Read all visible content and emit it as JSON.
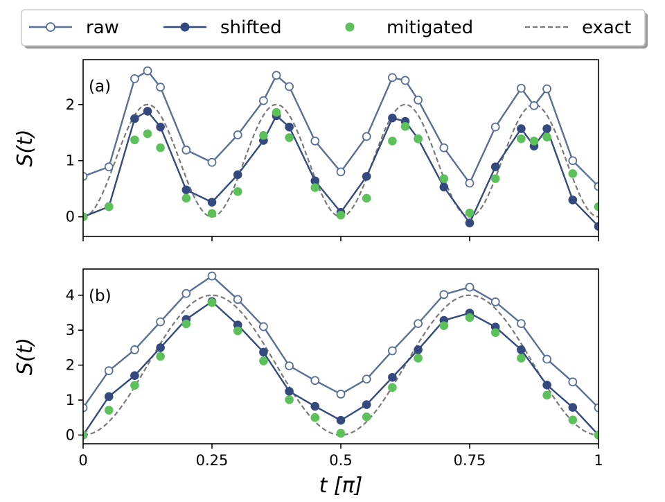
{
  "chart_data": {
    "type": "line",
    "legend": {
      "placement": "top",
      "entries": [
        {
          "name": "raw",
          "style": "open-circle-line",
          "color": "#5a6e96"
        },
        {
          "name": "shifted",
          "style": "filled-circle-line",
          "color": "#34497e"
        },
        {
          "name": "mitigated",
          "style": "dots",
          "color": "#5cc15a"
        },
        {
          "name": "exact",
          "style": "dashed",
          "color": "#7a7a7a"
        }
      ]
    },
    "xlabel": "t [π]",
    "ylabel": "S(t)",
    "xlim": [
      0,
      1
    ],
    "xticks": [
      0,
      0.25,
      0.5,
      0.75,
      1
    ],
    "xtick_labels": [
      "0",
      "0.25",
      "0.5",
      "0.75",
      "1"
    ],
    "panels": [
      {
        "label": "(a)",
        "ylim": [
          -0.35,
          2.8
        ],
        "yticks": [
          0,
          1,
          2
        ],
        "ytick_labels": [
          "0",
          "1",
          "2"
        ],
        "exact": {
          "formula": "1 - cos(8*pi*t)"
        },
        "series": [
          {
            "name": "raw",
            "x": [
              0,
              0.05,
              0.1,
              0.125,
              0.15,
              0.2,
              0.25,
              0.3,
              0.35,
              0.375,
              0.4,
              0.45,
              0.5,
              0.55,
              0.6,
              0.625,
              0.65,
              0.7,
              0.75,
              0.8,
              0.85,
              0.875,
              0.9,
              0.95,
              1.0
            ],
            "y": [
              0.72,
              0.89,
              2.46,
              2.6,
              2.31,
              1.19,
              0.97,
              1.46,
              2.07,
              2.52,
              2.32,
              1.35,
              0.8,
              1.43,
              2.48,
              2.43,
              2.08,
              1.23,
              0.6,
              1.6,
              2.29,
              1.98,
              2.28,
              1.0,
              0.54
            ]
          },
          {
            "name": "shifted",
            "x": [
              0,
              0.05,
              0.1,
              0.125,
              0.15,
              0.2,
              0.25,
              0.3,
              0.35,
              0.375,
              0.4,
              0.45,
              0.5,
              0.55,
              0.6,
              0.625,
              0.65,
              0.7,
              0.75,
              0.8,
              0.85,
              0.875,
              0.9,
              0.95,
              1.0
            ],
            "y": [
              0.0,
              0.18,
              1.75,
              1.88,
              1.6,
              0.48,
              0.26,
              0.75,
              1.36,
              1.8,
              1.6,
              0.64,
              0.08,
              0.72,
              1.76,
              1.7,
              1.39,
              0.53,
              -0.11,
              0.89,
              1.57,
              1.26,
              1.57,
              0.3,
              -0.17
            ]
          },
          {
            "name": "mitigated",
            "x": [
              0,
              0.05,
              0.1,
              0.125,
              0.15,
              0.2,
              0.25,
              0.3,
              0.35,
              0.375,
              0.4,
              0.45,
              0.5,
              0.55,
              0.6,
              0.625,
              0.65,
              0.7,
              0.75,
              0.8,
              0.85,
              0.875,
              0.9,
              0.95,
              1.0
            ],
            "y": [
              0.0,
              0.18,
              1.37,
              1.48,
              1.23,
              0.33,
              0.06,
              0.45,
              1.45,
              1.86,
              1.41,
              0.52,
              0.03,
              0.33,
              1.35,
              1.61,
              1.39,
              0.68,
              0.07,
              0.68,
              1.39,
              1.35,
              1.42,
              0.77,
              0.18
            ]
          }
        ]
      },
      {
        "label": "(b)",
        "ylim": [
          -0.25,
          4.75
        ],
        "yticks": [
          0,
          1,
          2,
          3,
          4
        ],
        "ytick_labels": [
          "0",
          "1",
          "2",
          "3",
          "4"
        ],
        "exact": {
          "formula": "2 - 2*cos(4*pi*t)"
        },
        "series": [
          {
            "name": "raw",
            "x": [
              0,
              0.05,
              0.1,
              0.15,
              0.2,
              0.25,
              0.3,
              0.35,
              0.4,
              0.45,
              0.5,
              0.55,
              0.6,
              0.65,
              0.7,
              0.75,
              0.8,
              0.85,
              0.9,
              0.95,
              1.0
            ],
            "y": [
              0.78,
              1.84,
              2.44,
              3.24,
              4.05,
              4.55,
              3.88,
              3.1,
              1.98,
              1.56,
              1.17,
              1.6,
              2.41,
              3.19,
              4.02,
              4.23,
              3.81,
              3.19,
              2.17,
              1.52,
              0.78
            ]
          },
          {
            "name": "shifted",
            "x": [
              0,
              0.05,
              0.1,
              0.15,
              0.2,
              0.25,
              0.3,
              0.35,
              0.4,
              0.45,
              0.5,
              0.55,
              0.6,
              0.65,
              0.7,
              0.75,
              0.8,
              0.85,
              0.9,
              0.95,
              1.0
            ],
            "y": [
              0.0,
              1.1,
              1.7,
              2.5,
              3.31,
              3.82,
              3.15,
              2.37,
              1.25,
              0.82,
              0.42,
              0.87,
              1.65,
              2.44,
              3.28,
              3.49,
              3.09,
              2.44,
              1.43,
              0.79,
              0.0
            ]
          },
          {
            "name": "mitigated",
            "x": [
              0,
              0.05,
              0.1,
              0.15,
              0.2,
              0.25,
              0.3,
              0.35,
              0.4,
              0.45,
              0.5,
              0.55,
              0.6,
              0.65,
              0.7,
              0.75,
              0.8,
              0.85,
              0.9,
              0.95,
              1.0
            ],
            "y": [
              0.0,
              0.71,
              1.42,
              2.25,
              3.18,
              3.79,
              2.98,
              2.12,
              1.01,
              0.5,
              0.05,
              0.52,
              1.36,
              2.2,
              3.13,
              3.36,
              2.93,
              2.2,
              1.14,
              0.43,
              0.0
            ]
          }
        ]
      }
    ]
  }
}
